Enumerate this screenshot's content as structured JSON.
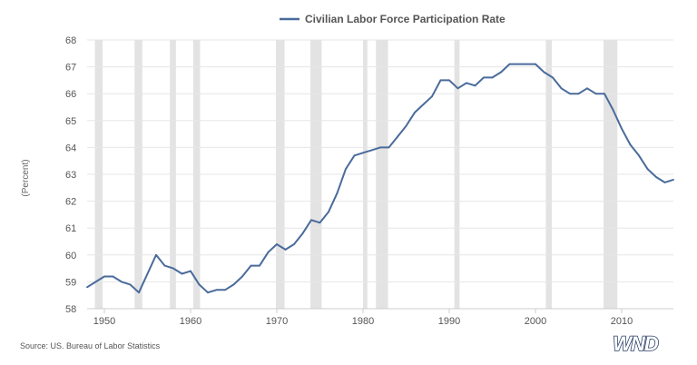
{
  "chart_data": {
    "type": "line",
    "title": "",
    "legend": [
      "Civilian Labor Force Participation Rate"
    ],
    "legend_position": "top-center",
    "ylabel": "(Percent)",
    "xlabel": "",
    "xlim": [
      1948,
      2016
    ],
    "ylim": [
      58,
      68
    ],
    "y_ticks": [
      "58",
      "59",
      "60",
      "61",
      "62",
      "63",
      "64",
      "65",
      "66",
      "67",
      "68"
    ],
    "x_ticks": [
      "1950",
      "1960",
      "1970",
      "1980",
      "1990",
      "2000",
      "2010"
    ],
    "grid": true,
    "colors": {
      "line": "#4a6b9b",
      "recession": "#e3e3e3",
      "grid": "#e6e6e6",
      "text": "#555555"
    },
    "recessions": [
      [
        1948.9,
        1949.8
      ],
      [
        1953.5,
        1954.4
      ],
      [
        1957.6,
        1958.3
      ],
      [
        1960.3,
        1961.1
      ],
      [
        1969.9,
        1970.9
      ],
      [
        1973.9,
        1975.2
      ],
      [
        1980.0,
        1980.5
      ],
      [
        1981.5,
        1982.9
      ],
      [
        1990.6,
        1991.2
      ],
      [
        2001.2,
        2001.9
      ],
      [
        2007.9,
        2009.5
      ]
    ],
    "series": [
      {
        "name": "Civilian Labor Force Participation Rate",
        "x": [
          1948,
          1949,
          1950,
          1951,
          1952,
          1953,
          1954,
          1955,
          1956,
          1957,
          1958,
          1959,
          1960,
          1961,
          1962,
          1963,
          1964,
          1965,
          1966,
          1967,
          1968,
          1969,
          1970,
          1971,
          1972,
          1973,
          1974,
          1975,
          1976,
          1977,
          1978,
          1979,
          1980,
          1981,
          1982,
          1983,
          1984,
          1985,
          1986,
          1987,
          1988,
          1989,
          1990,
          1991,
          1992,
          1993,
          1994,
          1995,
          1996,
          1997,
          1998,
          1999,
          2000,
          2001,
          2002,
          2003,
          2004,
          2005,
          2006,
          2007,
          2008,
          2009,
          2010,
          2011,
          2012,
          2013,
          2014,
          2015,
          2016
        ],
        "values": [
          58.8,
          59.0,
          59.2,
          59.2,
          59.0,
          58.9,
          58.6,
          59.3,
          60.0,
          59.6,
          59.5,
          59.3,
          59.4,
          58.9,
          58.6,
          58.7,
          58.7,
          58.9,
          59.2,
          59.6,
          59.6,
          60.1,
          60.4,
          60.2,
          60.4,
          60.8,
          61.3,
          61.2,
          61.6,
          62.3,
          63.2,
          63.7,
          63.8,
          63.9,
          64.0,
          64.0,
          64.4,
          64.8,
          65.3,
          65.6,
          65.9,
          66.5,
          66.5,
          66.2,
          66.4,
          66.3,
          66.6,
          66.6,
          66.8,
          67.1,
          67.1,
          67.1,
          67.1,
          66.8,
          66.6,
          66.2,
          66.0,
          66.0,
          66.2,
          66.0,
          66.0,
          65.4,
          64.7,
          64.1,
          63.7,
          63.2,
          62.9,
          62.7,
          62.8
        ]
      }
    ],
    "source": "Source: US. Bureau of Labor Statistics",
    "logo_text": "WND"
  }
}
